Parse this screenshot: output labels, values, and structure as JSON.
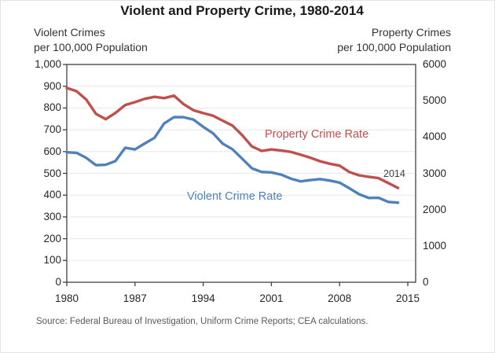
{
  "title": "Violent and Property Crime, 1980-2014",
  "left_axis_header": {
    "line1": "Violent Crimes",
    "line2": "per 100,000 Population"
  },
  "right_axis_header": {
    "line1": "Property Crimes",
    "line2": "per 100,000 Population"
  },
  "annotations": {
    "property_label": "Property Crime Rate",
    "violent_label": "Violent Crime Rate",
    "last_year_label": "2014"
  },
  "source": "Source: Federal Bureau of Investigation, Uniform Crime Reports; CEA calculations.",
  "colors": {
    "violent": "#4F81BD",
    "property": "#C0504D",
    "grid": "#E8E8E8",
    "axis": "#404040",
    "tick_text": "#262626",
    "source_text": "#595959"
  },
  "chart_data": {
    "type": "line",
    "title": "Violent and Property Crime, 1980-2014",
    "x": [
      1980,
      1981,
      1982,
      1983,
      1984,
      1985,
      1986,
      1987,
      1988,
      1989,
      1990,
      1991,
      1992,
      1993,
      1994,
      1995,
      1996,
      1997,
      1998,
      1999,
      2000,
      2001,
      2002,
      2003,
      2004,
      2005,
      2006,
      2007,
      2008,
      2009,
      2010,
      2011,
      2012,
      2013,
      2014
    ],
    "series": [
      {
        "name": "Violent Crime Rate",
        "axis": "left",
        "color_key": "violent",
        "values": [
          596.6,
          594.3,
          571.1,
          537.7,
          539.2,
          556.6,
          617.7,
          609.7,
          637.2,
          663.1,
          729.6,
          758.2,
          757.7,
          747.1,
          713.6,
          684.5,
          636.6,
          611.0,
          567.6,
          523.0,
          506.5,
          504.5,
          494.4,
          475.8,
          463.2,
          469.0,
          473.6,
          466.9,
          457.5,
          431.9,
          404.5,
          387.1,
          387.8,
          369.1,
          365.5
        ]
      },
      {
        "name": "Property Crime Rate",
        "axis": "right",
        "color_key": "property",
        "values": [
          5353.3,
          5263.9,
          5032.5,
          4637.4,
          4492.1,
          4666.4,
          4881.8,
          4963.0,
          5054.0,
          5107.1,
          5073.1,
          5140.2,
          4903.7,
          4740.0,
          4660.2,
          4590.5,
          4451.0,
          4316.3,
          4052.5,
          3743.6,
          3618.3,
          3658.1,
          3630.6,
          3591.2,
          3514.1,
          3431.5,
          3334.5,
          3263.5,
          3212.5,
          3036.1,
          2945.9,
          2905.4,
          2868.0,
          2733.6,
          2596.1
        ]
      }
    ],
    "left_axis": {
      "label": "Violent Crimes per 100,000 Population",
      "min": 0,
      "max": 1000,
      "tick_step": 100,
      "tick_labels": [
        "0",
        "100",
        "200",
        "300",
        "400",
        "500",
        "600",
        "700",
        "800",
        "900",
        "1,000"
      ]
    },
    "right_axis": {
      "label": "Property Crimes per 100,000 Population",
      "min": 0,
      "max": 6000,
      "tick_step": 1000,
      "tick_labels": [
        "0",
        "1000",
        "2000",
        "3000",
        "4000",
        "5000",
        "6000"
      ]
    },
    "x_axis": {
      "min": 1980,
      "max": 2015,
      "tick_labels": [
        "1980",
        "1987",
        "1994",
        "2001",
        "2008",
        "2015"
      ],
      "ticks": [
        1980,
        1987,
        1994,
        2001,
        2008,
        2015
      ]
    },
    "grid": "horizontal-primary-axis",
    "legend": "inline-series-labels"
  }
}
